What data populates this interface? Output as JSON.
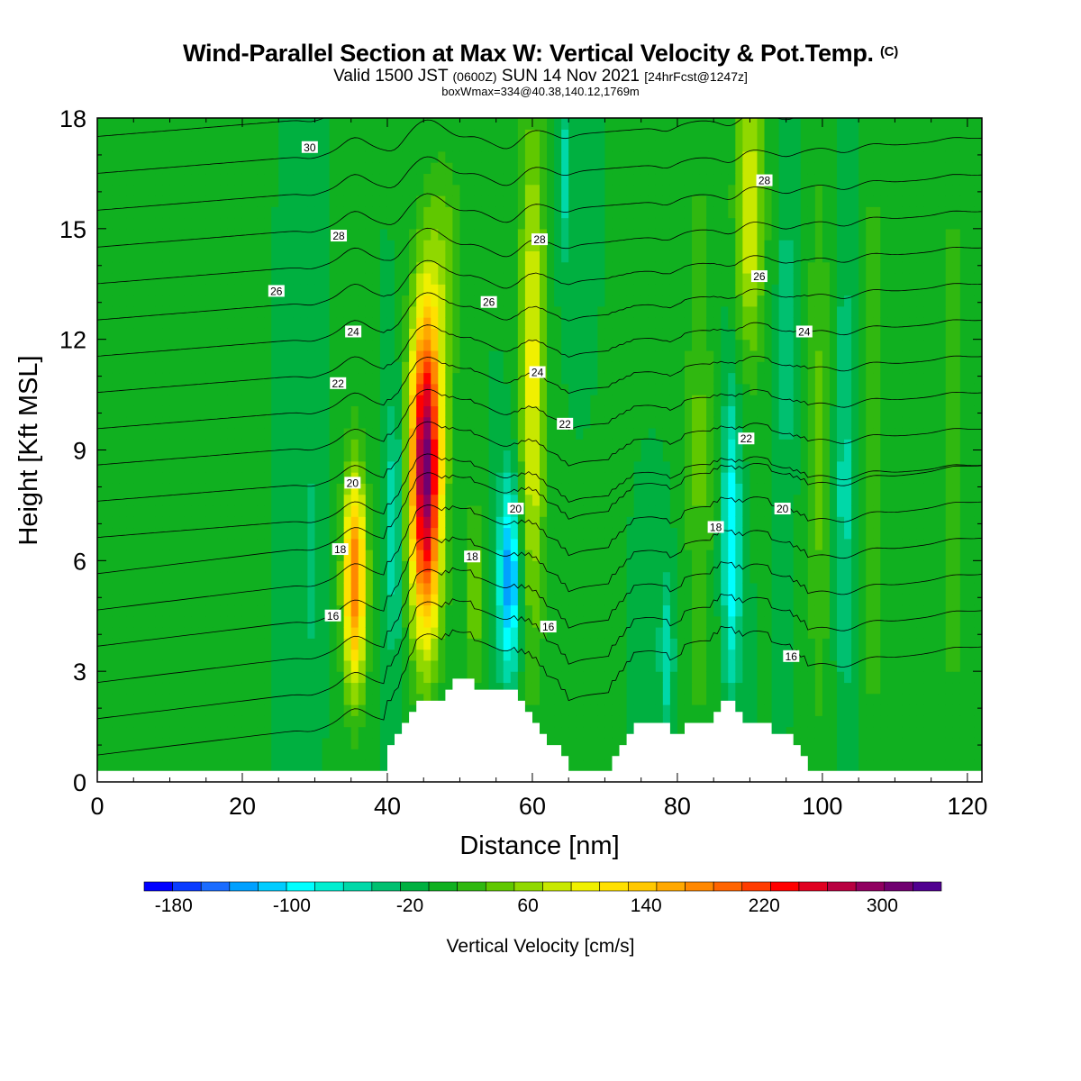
{
  "header": {
    "title": "Wind-Parallel Section at Max W: Vertical Velocity & Pot.Temp.",
    "copyright": "(C)",
    "valid_prefix": "Valid 1500 JST",
    "valid_utc": "(0600Z)",
    "valid_date": "SUN 14 Nov 2021",
    "forecast": "[24hrFcst@1247z]",
    "boxwmax": "boxWmax=334@40.38,140.12,1769m"
  },
  "chart_data": {
    "type": "contour",
    "xlabel": "Distance [nm]",
    "ylabel": "Height [Kft MSL]",
    "xlim": [
      0,
      122
    ],
    "ylim": [
      0,
      18
    ],
    "x_ticks": [
      0,
      20,
      40,
      60,
      80,
      100,
      120
    ],
    "y_ticks": [
      0,
      3,
      6,
      9,
      12,
      15,
      18
    ],
    "background_w_cm_s": 0,
    "updraft_bands": [
      {
        "x": 35.5,
        "y_center": 5.5,
        "half_width_x": 1.6,
        "half_height_y": 3.0,
        "peak_w": 200
      },
      {
        "x": 45.3,
        "y_center": 8.5,
        "half_width_x": 2.2,
        "half_height_y": 4.4,
        "peak_w": 330
      },
      {
        "x": 60.0,
        "y_center": 11.0,
        "half_width_x": 1.8,
        "half_height_y": 7.0,
        "peak_w": 110
      },
      {
        "x": 52.0,
        "y_center": 5.0,
        "half_width_x": 1.2,
        "half_height_y": 2.5,
        "peak_w": 60
      },
      {
        "x": 90.0,
        "y_center": 15.5,
        "half_width_x": 2.0,
        "half_height_y": 4.0,
        "peak_w": 100
      },
      {
        "x": 83.0,
        "y_center": 9.0,
        "half_width_x": 1.8,
        "half_height_y": 8.0,
        "peak_w": 45
      },
      {
        "x": 99.5,
        "y_center": 9.0,
        "half_width_x": 1.6,
        "half_height_y": 8.0,
        "peak_w": 45
      },
      {
        "x": 107.0,
        "y_center": 9.0,
        "half_width_x": 1.4,
        "half_height_y": 8.0,
        "peak_w": 45
      },
      {
        "x": 118.0,
        "y_center": 9.0,
        "half_width_x": 1.5,
        "half_height_y": 8.0,
        "peak_w": 40
      },
      {
        "x": 48.0,
        "y_center": 14.0,
        "half_width_x": 2.5,
        "half_height_y": 3.0,
        "peak_w": 50
      }
    ],
    "downdraft_bands": [
      {
        "x": 56.8,
        "y_center": 5.5,
        "half_width_x": 1.5,
        "half_height_y": 2.6,
        "peak_w": -140
      },
      {
        "x": 87.5,
        "y_center": 6.5,
        "half_width_x": 1.2,
        "half_height_y": 4.0,
        "peak_w": -100
      },
      {
        "x": 41.0,
        "y_center": 7.0,
        "half_width_x": 1.0,
        "half_height_y": 3.5,
        "peak_w": -70
      },
      {
        "x": 78.5,
        "y_center": 3.5,
        "half_width_x": 1.0,
        "half_height_y": 2.0,
        "peak_w": -60
      },
      {
        "x": 64.5,
        "y_center": 16.5,
        "half_width_x": 1.0,
        "half_height_y": 2.5,
        "peak_w": -50
      },
      {
        "x": 103.0,
        "y_center": 8.0,
        "half_width_x": 1.2,
        "half_height_y": 6.0,
        "peak_w": -50
      },
      {
        "x": 95.0,
        "y_center": 12.0,
        "half_width_x": 1.0,
        "half_height_y": 4.0,
        "peak_w": -40
      },
      {
        "x": 29.5,
        "y_center": 6.0,
        "half_width_x": 1.0,
        "half_height_y": 3.0,
        "peak_w": -35
      }
    ],
    "terrain_heights_kft": [
      [
        0,
        0.3
      ],
      [
        40,
        0.3
      ],
      [
        40,
        1.0
      ],
      [
        41,
        1.0
      ],
      [
        41,
        1.3
      ],
      [
        42,
        1.3
      ],
      [
        42,
        1.6
      ],
      [
        43,
        1.6
      ],
      [
        43,
        1.9
      ],
      [
        44,
        1.9
      ],
      [
        44,
        2.2
      ],
      [
        48,
        2.2
      ],
      [
        48,
        2.5
      ],
      [
        49,
        2.5
      ],
      [
        49,
        2.8
      ],
      [
        52,
        2.8
      ],
      [
        52,
        2.5
      ],
      [
        58,
        2.5
      ],
      [
        58,
        2.2
      ],
      [
        59,
        2.2
      ],
      [
        59,
        1.9
      ],
      [
        60,
        1.9
      ],
      [
        60,
        1.6
      ],
      [
        61,
        1.6
      ],
      [
        61,
        1.3
      ],
      [
        62,
        1.3
      ],
      [
        62,
        1.0
      ],
      [
        64,
        1.0
      ],
      [
        64,
        0.7
      ],
      [
        65,
        0.7
      ],
      [
        65,
        0.3
      ],
      [
        71,
        0.3
      ],
      [
        71,
        0.7
      ],
      [
        72,
        0.7
      ],
      [
        72,
        1.0
      ],
      [
        73,
        1.0
      ],
      [
        73,
        1.3
      ],
      [
        74,
        1.3
      ],
      [
        74,
        1.6
      ],
      [
        79,
        1.6
      ],
      [
        79,
        1.3
      ],
      [
        81,
        1.3
      ],
      [
        81,
        1.6
      ],
      [
        85,
        1.6
      ],
      [
        85,
        1.9
      ],
      [
        86,
        1.9
      ],
      [
        86,
        2.2
      ],
      [
        88,
        2.2
      ],
      [
        88,
        1.9
      ],
      [
        89,
        1.9
      ],
      [
        89,
        1.6
      ],
      [
        93,
        1.6
      ],
      [
        93,
        1.3
      ],
      [
        96,
        1.3
      ],
      [
        96,
        1.0
      ],
      [
        97,
        1.0
      ],
      [
        97,
        0.7
      ],
      [
        98,
        0.7
      ],
      [
        98,
        0.3
      ],
      [
        122,
        0.3
      ]
    ],
    "theta_contour_levels": [
      14,
      15,
      16,
      17,
      18,
      19,
      20,
      21,
      22,
      23,
      24,
      25,
      26,
      27,
      28,
      29,
      30,
      31
    ],
    "theta_labels": [
      {
        "value": "30",
        "x": 29.3,
        "y": 17.2
      },
      {
        "value": "28",
        "x": 33.3,
        "y": 14.8
      },
      {
        "value": "26",
        "x": 24.7,
        "y": 13.3
      },
      {
        "value": "24",
        "x": 35.3,
        "y": 12.2
      },
      {
        "value": "22",
        "x": 33.2,
        "y": 10.8
      },
      {
        "value": "20",
        "x": 35.2,
        "y": 8.1
      },
      {
        "value": "18",
        "x": 33.5,
        "y": 6.3
      },
      {
        "value": "16",
        "x": 32.5,
        "y": 4.5
      },
      {
        "value": "28",
        "x": 61.0,
        "y": 14.7
      },
      {
        "value": "26",
        "x": 54.0,
        "y": 13.0
      },
      {
        "value": "24",
        "x": 60.7,
        "y": 11.1
      },
      {
        "value": "22",
        "x": 64.5,
        "y": 9.7
      },
      {
        "value": "20",
        "x": 57.7,
        "y": 7.4
      },
      {
        "value": "18",
        "x": 51.7,
        "y": 6.1
      },
      {
        "value": "16",
        "x": 62.2,
        "y": 4.2
      },
      {
        "value": "28",
        "x": 92.0,
        "y": 16.3
      },
      {
        "value": "26",
        "x": 91.3,
        "y": 13.7
      },
      {
        "value": "24",
        "x": 97.5,
        "y": 12.2
      },
      {
        "value": "22",
        "x": 89.5,
        "y": 9.3
      },
      {
        "value": "20",
        "x": 94.5,
        "y": 7.4
      },
      {
        "value": "18",
        "x": 85.3,
        "y": 6.9
      },
      {
        "value": "16",
        "x": 95.7,
        "y": 3.4
      }
    ],
    "colorbar": {
      "label": "Vertical Velocity [cm/s]",
      "tick_labels": [
        "-180",
        "-100",
        "-20",
        "60",
        "140",
        "220",
        "300"
      ],
      "min": -200,
      "max": 340,
      "step": 20,
      "colors": [
        "#0000ff",
        "#0a3cff",
        "#1a6cff",
        "#00a0ff",
        "#00ccff",
        "#00ffff",
        "#00eed0",
        "#00d8a8",
        "#00c070",
        "#00b040",
        "#10b020",
        "#30b810",
        "#60c800",
        "#90d800",
        "#c8e800",
        "#f0f000",
        "#ffe000",
        "#ffc800",
        "#ffa800",
        "#ff8800",
        "#ff6400",
        "#ff3c00",
        "#ff0000",
        "#e00020",
        "#b80040",
        "#900060",
        "#700070",
        "#500090"
      ]
    }
  }
}
